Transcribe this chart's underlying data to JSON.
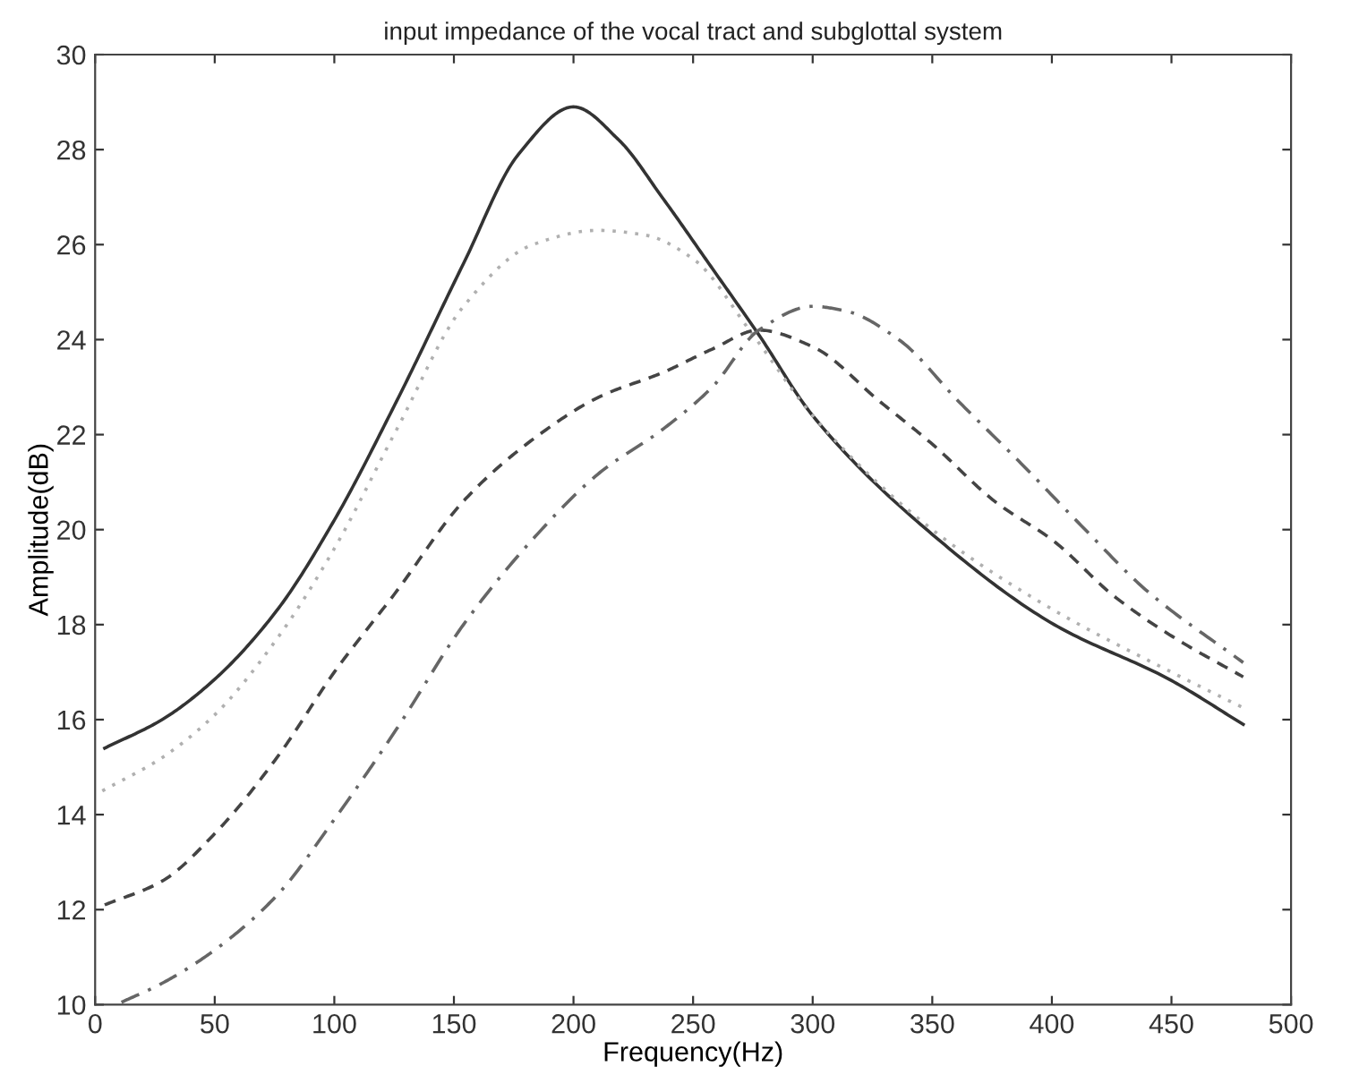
{
  "chart_data": {
    "type": "line",
    "title": "input impedance of the vocal tract and subglottal system",
    "xlabel": "Frequency(Hz)",
    "ylabel": "Amplitude(dB)",
    "xlim": [
      0,
      500
    ],
    "ylim": [
      10,
      30
    ],
    "xticks": [
      0,
      50,
      100,
      150,
      200,
      250,
      300,
      350,
      400,
      450,
      500
    ],
    "yticks": [
      10,
      12,
      14,
      16,
      18,
      20,
      22,
      24,
      26,
      28,
      30
    ],
    "grid": false,
    "marker": "none",
    "series": [
      {
        "color": "#333333",
        "line_style": "solid",
        "x": [
          4,
          28,
          50,
          76,
          100,
          126,
          154,
          177,
          200,
          219,
          237,
          258,
          277.5,
          300,
          350,
          401,
          449,
          480
        ],
        "values": [
          15.4,
          16.0,
          16.85,
          18.3,
          20.2,
          22.7,
          25.6,
          27.9,
          28.9,
          28.2,
          27.0,
          25.5,
          24.1,
          22.4,
          19.9,
          18.0,
          16.85,
          15.9
        ]
      },
      {
        "color": "#b0b0b0",
        "line_style": "dotted",
        "x": [
          3,
          28,
          50,
          76,
          100,
          126,
          154,
          183,
          210,
          230,
          250,
          275,
          300,
          350,
          401,
          450,
          480
        ],
        "values": [
          14.5,
          15.2,
          16.1,
          17.7,
          19.6,
          22.1,
          24.7,
          26.0,
          26.3,
          26.2,
          25.7,
          24.1,
          22.4,
          20.0,
          18.3,
          17.0,
          16.25
        ]
      },
      {
        "color": "#444444",
        "line_style": "dashed",
        "x": [
          4,
          28,
          50,
          76,
          100,
          126,
          154,
          183,
          211,
          237,
          258,
          277.5,
          300,
          328,
          350,
          376,
          401,
          426,
          452,
          480
        ],
        "values": [
          12.1,
          12.6,
          13.6,
          15.2,
          17.0,
          18.7,
          20.6,
          21.9,
          22.8,
          23.3,
          23.8,
          24.2,
          23.85,
          22.7,
          21.8,
          20.6,
          19.75,
          18.6,
          17.7,
          16.9
        ]
      },
      {
        "color": "#666666",
        "line_style": "dashdot",
        "x": [
          11,
          28,
          50,
          76,
          100,
          126,
          154,
          183,
          211,
          237,
          258,
          277.5,
          300,
          314,
          336,
          361,
          387,
          412,
          440,
          480
        ],
        "values": [
          10.05,
          10.45,
          11.15,
          12.3,
          13.9,
          15.8,
          18.0,
          19.8,
          21.2,
          22.1,
          23.0,
          24.2,
          24.7,
          24.6,
          24.0,
          22.7,
          21.4,
          20.1,
          18.7,
          17.2
        ]
      }
    ]
  }
}
